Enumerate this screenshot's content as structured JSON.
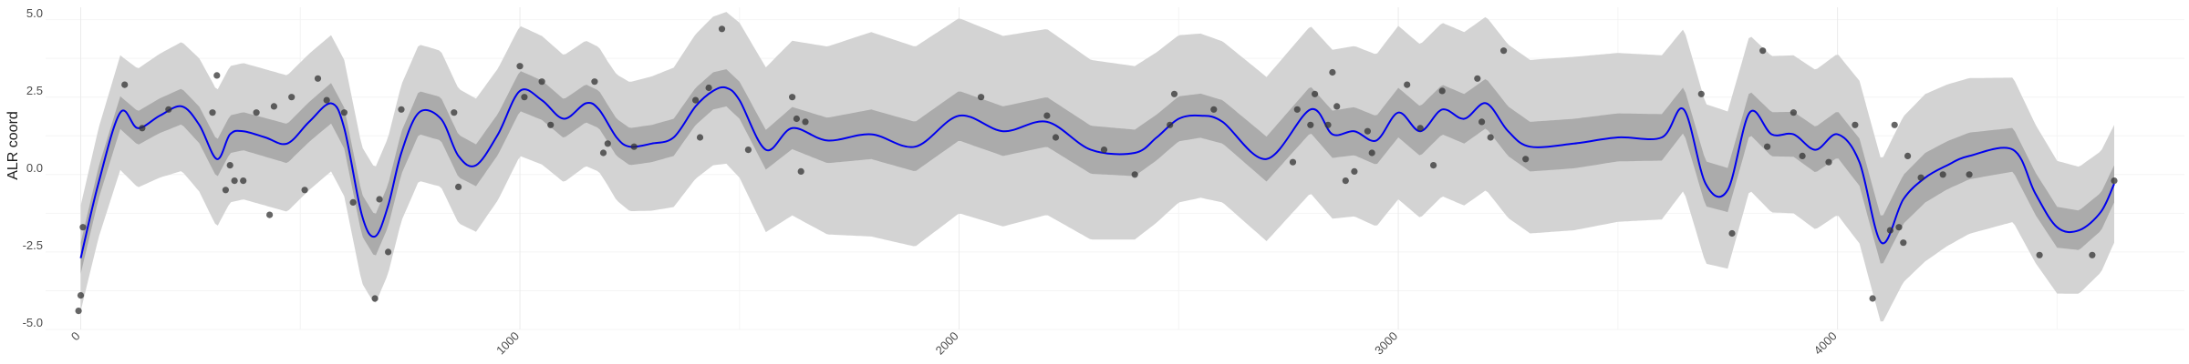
{
  "chart_data": {
    "type": "line",
    "title": "",
    "xlabel": "",
    "ylabel": "ALR coord",
    "xlim": [
      -80,
      4790
    ],
    "ylim": [
      -5.2,
      5.2
    ],
    "x_ticks": [
      0,
      1000,
      2000,
      3000,
      4000
    ],
    "x_tick_labels": [
      "0",
      "1000",
      "2000",
      "3000",
      "4000"
    ],
    "y_ticks": [
      -5.0,
      -2.5,
      0.0,
      2.5,
      5.0
    ],
    "y_tick_labels": [
      "-5.0",
      "-2.5",
      "0.0",
      "2.5",
      "5.0"
    ],
    "grid": true,
    "colors": {
      "mean": "#0000ee",
      "inner_band": "#ababab",
      "outer_band": "#d3d3d3",
      "points": "#333333"
    },
    "mean": {
      "x": [
        0,
        40,
        90,
        130,
        180,
        230,
        270,
        310,
        340,
        370,
        420,
        470,
        520,
        570,
        600,
        640,
        670,
        700,
        730,
        770,
        820,
        860,
        900,
        950,
        1000,
        1050,
        1100,
        1150,
        1180,
        1220,
        1250,
        1300,
        1350,
        1400,
        1440,
        1470,
        1500,
        1560,
        1620,
        1700,
        1800,
        1900,
        2000,
        2100,
        2200,
        2300,
        2400,
        2450,
        2500,
        2550,
        2600,
        2700,
        2800,
        2850,
        2900,
        2950,
        3000,
        3050,
        3100,
        3150,
        3200,
        3250,
        3300,
        3400,
        3500,
        3600,
        3650,
        3700,
        3750,
        3800,
        3850,
        3900,
        3950,
        4000,
        4050,
        4100,
        4150,
        4200,
        4250,
        4300,
        4400,
        4450,
        4500,
        4550,
        4600,
        4630
      ],
      "y": [
        -2.9,
        -0.5,
        1.8,
        1.3,
        1.7,
        2.0,
        1.4,
        0.3,
        1.1,
        1.2,
        1.0,
        0.8,
        1.5,
        2.1,
        1.3,
        -1.5,
        -2.2,
        -1.2,
        0.5,
        1.8,
        1.6,
        0.4,
        0.1,
        1.1,
        2.5,
        2.2,
        1.6,
        2.1,
        1.9,
        1.0,
        0.7,
        0.8,
        1.0,
        2.0,
        2.5,
        2.6,
        2.2,
        0.6,
        1.3,
        0.9,
        1.1,
        0.7,
        1.7,
        1.2,
        1.5,
        0.6,
        0.5,
        1.0,
        1.6,
        1.7,
        1.5,
        0.3,
        1.9,
        1.1,
        1.2,
        0.9,
        1.8,
        1.2,
        1.9,
        1.6,
        2.1,
        1.2,
        0.7,
        0.8,
        1.0,
        1.0,
        1.9,
        -0.5,
        -0.7,
        1.8,
        1.1,
        1.1,
        0.6,
        1.1,
        0.2,
        -2.4,
        -1.0,
        -0.3,
        0.1,
        0.4,
        0.6,
        -0.8,
        -1.9,
        -2.0,
        -1.4,
        -0.5
      ]
    },
    "inner_band_halfwidth": {
      "x": [
        0,
        300,
        800,
        1200,
        1500,
        1800,
        2200,
        2600,
        3000,
        3400,
        3800,
        4200,
        4630
      ],
      "y": [
        0.5,
        0.6,
        0.7,
        0.6,
        0.6,
        0.8,
        0.8,
        0.7,
        0.8,
        0.8,
        0.7,
        0.8,
        0.6
      ]
    },
    "outer_band_halfwidth": {
      "x": [
        0,
        300,
        800,
        1200,
        1500,
        1800,
        2200,
        2600,
        3000,
        3400,
        3800,
        4200,
        4630
      ],
      "y": [
        1.7,
        2.2,
        2.2,
        2.0,
        2.5,
        3.3,
        3.0,
        2.6,
        2.8,
        2.8,
        2.5,
        2.7,
        1.9
      ]
    },
    "points": [
      {
        "x": -5,
        "y": -4.6
      },
      {
        "x": 0,
        "y": -4.1
      },
      {
        "x": 5,
        "y": -1.9
      },
      {
        "x": 100,
        "y": 2.7
      },
      {
        "x": 140,
        "y": 1.3
      },
      {
        "x": 200,
        "y": 1.9
      },
      {
        "x": 300,
        "y": 1.8
      },
      {
        "x": 310,
        "y": 3.0
      },
      {
        "x": 330,
        "y": -0.7
      },
      {
        "x": 340,
        "y": 0.1
      },
      {
        "x": 350,
        "y": -0.4
      },
      {
        "x": 370,
        "y": -0.4
      },
      {
        "x": 400,
        "y": 1.8
      },
      {
        "x": 430,
        "y": -1.5
      },
      {
        "x": 440,
        "y": 2.0
      },
      {
        "x": 480,
        "y": 2.3
      },
      {
        "x": 510,
        "y": -0.7
      },
      {
        "x": 540,
        "y": 2.9
      },
      {
        "x": 560,
        "y": 2.2
      },
      {
        "x": 600,
        "y": 1.8
      },
      {
        "x": 620,
        "y": -1.1
      },
      {
        "x": 670,
        "y": -4.2
      },
      {
        "x": 680,
        "y": -1.0
      },
      {
        "x": 700,
        "y": -2.7
      },
      {
        "x": 730,
        "y": 1.9
      },
      {
        "x": 850,
        "y": 1.8
      },
      {
        "x": 860,
        "y": -0.6
      },
      {
        "x": 1000,
        "y": 3.3
      },
      {
        "x": 1010,
        "y": 2.3
      },
      {
        "x": 1050,
        "y": 2.8
      },
      {
        "x": 1070,
        "y": 1.4
      },
      {
        "x": 1170,
        "y": 2.8
      },
      {
        "x": 1190,
        "y": 0.5
      },
      {
        "x": 1200,
        "y": 0.8
      },
      {
        "x": 1260,
        "y": 0.7
      },
      {
        "x": 1400,
        "y": 2.2
      },
      {
        "x": 1410,
        "y": 1.0
      },
      {
        "x": 1430,
        "y": 2.6
      },
      {
        "x": 1460,
        "y": 4.5
      },
      {
        "x": 1520,
        "y": 0.6
      },
      {
        "x": 1620,
        "y": 2.3
      },
      {
        "x": 1630,
        "y": 1.6
      },
      {
        "x": 1640,
        "y": -0.1
      },
      {
        "x": 1650,
        "y": 1.5
      },
      {
        "x": 2050,
        "y": 2.3
      },
      {
        "x": 2200,
        "y": 1.7
      },
      {
        "x": 2220,
        "y": 1.0
      },
      {
        "x": 2330,
        "y": 0.6
      },
      {
        "x": 2400,
        "y": -0.2
      },
      {
        "x": 2480,
        "y": 1.4
      },
      {
        "x": 2490,
        "y": 2.4
      },
      {
        "x": 2580,
        "y": 1.9
      },
      {
        "x": 2760,
        "y": 0.2
      },
      {
        "x": 2770,
        "y": 1.9
      },
      {
        "x": 2800,
        "y": 1.4
      },
      {
        "x": 2810,
        "y": 2.4
      },
      {
        "x": 2840,
        "y": 1.4
      },
      {
        "x": 2850,
        "y": 3.1
      },
      {
        "x": 2860,
        "y": 2.0
      },
      {
        "x": 2880,
        "y": -0.4
      },
      {
        "x": 2900,
        "y": -0.1
      },
      {
        "x": 2930,
        "y": 1.2
      },
      {
        "x": 2940,
        "y": 0.5
      },
      {
        "x": 3020,
        "y": 2.7
      },
      {
        "x": 3050,
        "y": 1.3
      },
      {
        "x": 3080,
        "y": 0.1
      },
      {
        "x": 3100,
        "y": 2.5
      },
      {
        "x": 3180,
        "y": 2.9
      },
      {
        "x": 3190,
        "y": 1.5
      },
      {
        "x": 3210,
        "y": 1.0
      },
      {
        "x": 3240,
        "y": 3.8
      },
      {
        "x": 3290,
        "y": 0.3
      },
      {
        "x": 3690,
        "y": 2.4
      },
      {
        "x": 3760,
        "y": -2.1
      },
      {
        "x": 3830,
        "y": 3.8
      },
      {
        "x": 3840,
        "y": 0.7
      },
      {
        "x": 3900,
        "y": 1.8
      },
      {
        "x": 3920,
        "y": 0.4
      },
      {
        "x": 3980,
        "y": 0.2
      },
      {
        "x": 4040,
        "y": 1.4
      },
      {
        "x": 4080,
        "y": -4.2
      },
      {
        "x": 4120,
        "y": -2.0
      },
      {
        "x": 4130,
        "y": 1.4
      },
      {
        "x": 4140,
        "y": -1.9
      },
      {
        "x": 4150,
        "y": -2.4
      },
      {
        "x": 4160,
        "y": 0.4
      },
      {
        "x": 4190,
        "y": -0.3
      },
      {
        "x": 4240,
        "y": -0.2
      },
      {
        "x": 4300,
        "y": -0.2
      },
      {
        "x": 4460,
        "y": -2.8
      },
      {
        "x": 4580,
        "y": -2.8
      },
      {
        "x": 4630,
        "y": -0.4
      }
    ]
  }
}
